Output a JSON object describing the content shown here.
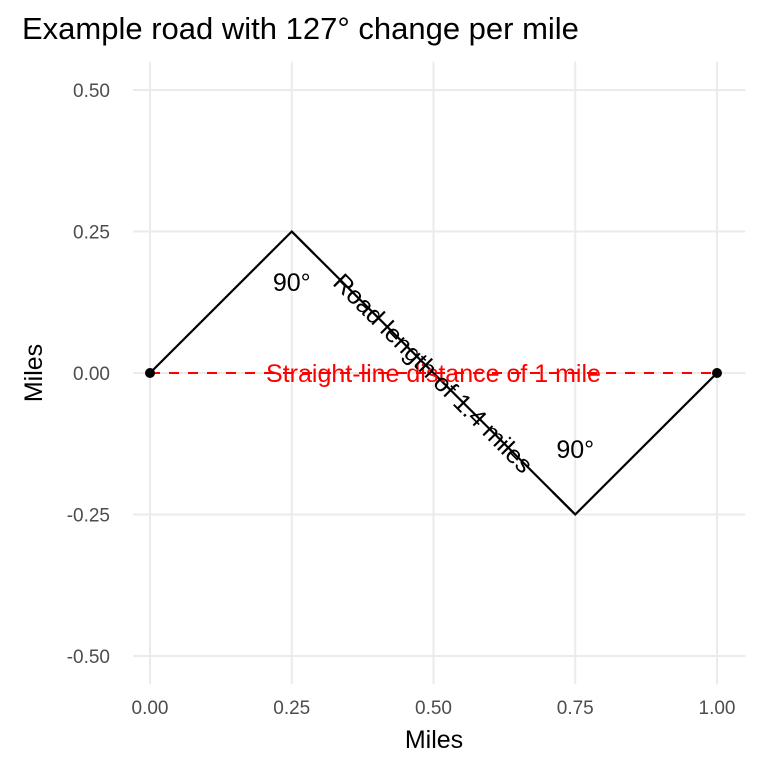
{
  "chart_data": {
    "type": "line",
    "title": "Example road with 127° change per mile",
    "xlabel": "Miles",
    "ylabel": "Miles",
    "xlim": [
      -0.03,
      1.05
    ],
    "ylim": [
      -0.55,
      0.55
    ],
    "xticks": [
      0,
      0.25,
      0.5,
      0.75,
      1
    ],
    "xtick_labels": [
      "0.00",
      "0.25",
      "0.50",
      "0.75",
      "1.00"
    ],
    "yticks": [
      -0.5,
      -0.25,
      0,
      0.25,
      0.5
    ],
    "ytick_labels": [
      "-0.50",
      "-0.25",
      "0.00",
      "0.25",
      "0.50"
    ],
    "grid": true,
    "road": {
      "x": [
        0,
        0.25,
        0.5,
        0.75,
        1
      ],
      "y": [
        0,
        0.25,
        0,
        -0.25,
        0
      ],
      "color": "#000000"
    },
    "endpoints": {
      "x": [
        0,
        1
      ],
      "y": [
        0,
        0
      ],
      "color": "#000000"
    },
    "straight_line": {
      "x": [
        0,
        1
      ],
      "y": [
        0,
        0
      ],
      "color": "#ff0000",
      "style": "dashed",
      "label": "Straight-line distance of 1 mile"
    },
    "road_label": {
      "text": "Road length of 1.4 miles",
      "x": 0.5,
      "y": 0.0,
      "angle": -45
    },
    "right_angle_markers": [
      {
        "x": 0.25,
        "y": 0.25,
        "label": "90°",
        "label_x": 0.25,
        "label_y": 0.145
      },
      {
        "x": 0.75,
        "y": -0.25,
        "label": "90°",
        "label_x": 0.75,
        "label_y": -0.15
      }
    ]
  }
}
